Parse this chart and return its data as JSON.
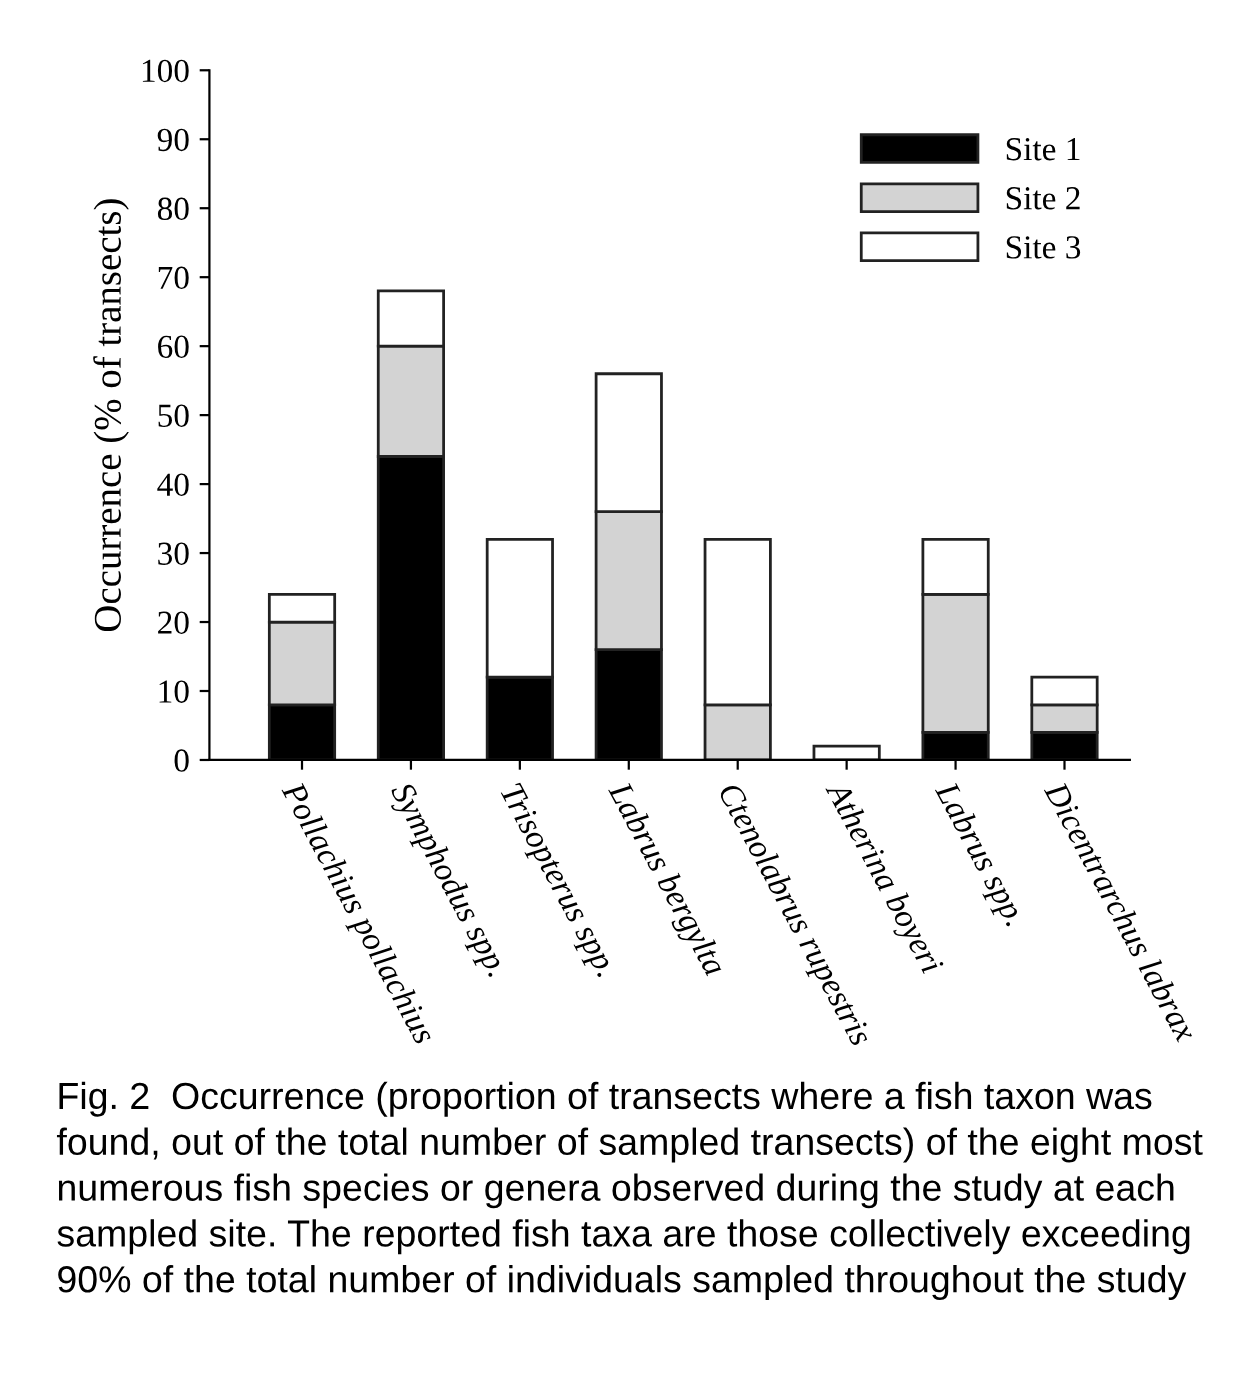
{
  "chart_data": {
    "type": "bar",
    "stacked": true,
    "ylabel": "Occurrence (% of transects)",
    "categories": [
      "Pollachius pollachius",
      "Symphodus spp.",
      "Trisopterus spp.",
      "Labrus bergylta",
      "Ctenolabrus rupestris",
      "Atherina boyeri",
      "Labrus spp.",
      "Dicentrarchus labrax"
    ],
    "series": [
      {
        "name": "Site 1",
        "color": "#000000",
        "values": [
          8,
          44,
          12,
          16,
          0,
          0,
          4,
          4
        ]
      },
      {
        "name": "Site 2",
        "color": "#d3d3d3",
        "values": [
          12,
          16,
          0,
          20,
          8,
          0,
          20,
          4
        ]
      },
      {
        "name": "Site 3",
        "color": "#ffffff",
        "values": [
          4,
          8,
          20,
          20,
          24,
          2,
          8,
          4
        ]
      }
    ],
    "ylim": [
      0,
      100
    ],
    "yticks": [
      0,
      10,
      20,
      30,
      40,
      50,
      60,
      70,
      80,
      90,
      100
    ],
    "grid": false,
    "legend": "top right",
    "annotations": [
      "Fig. 2  Occurrence (proportion of transects where a fish taxon was found, out of the total number of sampled transects) of the eight most numerous fish species or genera observed during the study at each sampled site. The reported fish taxa are those collectively exceeding 90% of the total number of individuals sampled throughout the study"
    ]
  }
}
